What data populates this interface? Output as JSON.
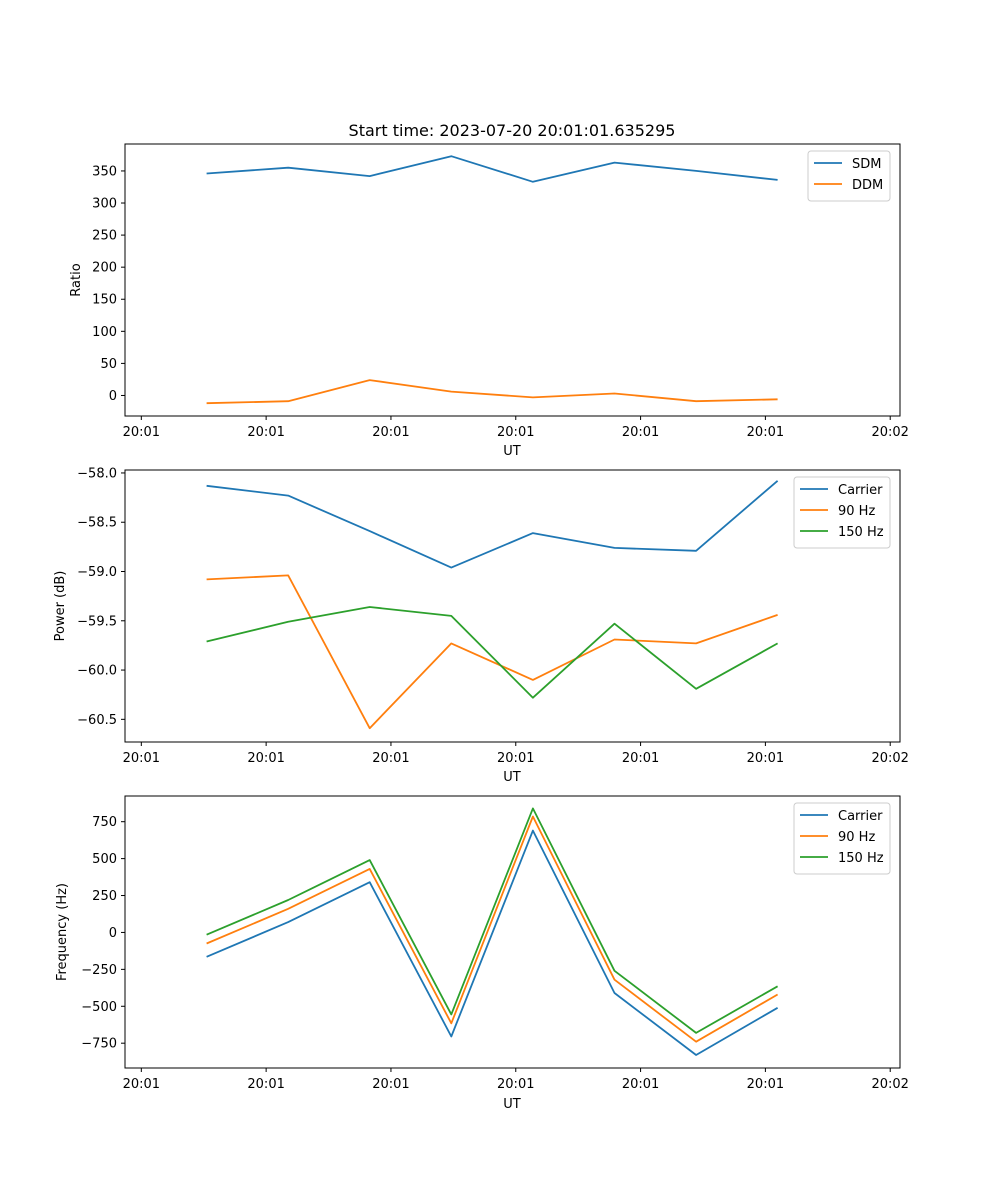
{
  "chart_data": [
    {
      "type": "line",
      "title": "Start time: 2023-07-20 20:01:01.635295",
      "xlabel": "UT",
      "ylabel": "Ratio",
      "x_tick_labels": [
        "20:01",
        "20:01",
        "20:01",
        "20:01",
        "20:01",
        "20:01",
        "20:02"
      ],
      "x": [
        1,
        2,
        3,
        4,
        5,
        6,
        7,
        8
      ],
      "xlim": [
        0,
        9.5
      ],
      "x_ticks": [
        0.2,
        1.73,
        3.26,
        4.79,
        6.32,
        7.85,
        9.38
      ],
      "ylim": [
        -32,
        392
      ],
      "y_ticks": [
        0,
        50,
        100,
        150,
        200,
        250,
        300,
        350
      ],
      "legend_position": "top-right",
      "series": [
        {
          "name": "SDM",
          "color": "#1f77b4",
          "values": [
            346,
            355,
            342,
            373,
            333,
            363,
            350,
            336
          ]
        },
        {
          "name": "DDM",
          "color": "#ff7f0e",
          "values": [
            -12,
            -9,
            24,
            6,
            -3,
            3,
            -9,
            -6
          ]
        }
      ]
    },
    {
      "type": "line",
      "title": "",
      "xlabel": "UT",
      "ylabel": "Power (dB)",
      "x_tick_labels": [
        "20:01",
        "20:01",
        "20:01",
        "20:01",
        "20:01",
        "20:01",
        "20:02"
      ],
      "x": [
        1,
        2,
        3,
        4,
        5,
        6,
        7,
        8
      ],
      "xlim": [
        0,
        9.5
      ],
      "x_ticks": [
        0.2,
        1.73,
        3.26,
        4.79,
        6.32,
        7.85,
        9.38
      ],
      "ylim": [
        -60.73,
        -57.97
      ],
      "y_ticks": [
        -58.0,
        -58.5,
        -59.0,
        -59.5,
        -60.0,
        -60.5
      ],
      "y_tick_labels": [
        "−58.0",
        "−58.5",
        "−59.0",
        "−59.5",
        "−60.0",
        "−60.5"
      ],
      "legend_position": "top-right",
      "series": [
        {
          "name": "Carrier",
          "color": "#1f77b4",
          "values": [
            -58.13,
            -58.23,
            -58.59,
            -58.96,
            -58.61,
            -58.76,
            -58.79,
            -58.08
          ]
        },
        {
          "name": "90 Hz",
          "color": "#ff7f0e",
          "values": [
            -59.08,
            -59.04,
            -60.59,
            -59.73,
            -60.1,
            -59.69,
            -59.73,
            -59.44
          ]
        },
        {
          "name": "150 Hz",
          "color": "#2ca02c",
          "values": [
            -59.71,
            -59.51,
            -59.36,
            -59.45,
            -60.28,
            -59.53,
            -60.19,
            -59.73
          ]
        }
      ]
    },
    {
      "type": "line",
      "title": "",
      "xlabel": "UT",
      "ylabel": "Frequency (Hz)",
      "x_tick_labels": [
        "20:01",
        "20:01",
        "20:01",
        "20:01",
        "20:01",
        "20:01",
        "20:02"
      ],
      "x": [
        1,
        2,
        3,
        4,
        5,
        6,
        7,
        8
      ],
      "xlim": [
        0,
        9.5
      ],
      "x_ticks": [
        0.2,
        1.73,
        3.26,
        4.79,
        6.32,
        7.85,
        9.38
      ],
      "ylim": [
        -918,
        924
      ],
      "y_ticks": [
        750,
        500,
        250,
        0,
        -250,
        -500,
        -750
      ],
      "y_tick_labels": [
        "750",
        "500",
        "250",
        "0",
        "−250",
        "−500",
        "−750"
      ],
      "legend_position": "top-right",
      "series": [
        {
          "name": "Carrier",
          "color": "#1f77b4",
          "values": [
            -165,
            70,
            340,
            -705,
            690,
            -410,
            -830,
            -510
          ]
        },
        {
          "name": "90 Hz",
          "color": "#ff7f0e",
          "values": [
            -75,
            160,
            430,
            -615,
            785,
            -320,
            -740,
            -420
          ]
        },
        {
          "name": "150 Hz",
          "color": "#2ca02c",
          "values": [
            -15,
            220,
            490,
            -555,
            840,
            -260,
            -680,
            -365
          ]
        }
      ]
    }
  ]
}
